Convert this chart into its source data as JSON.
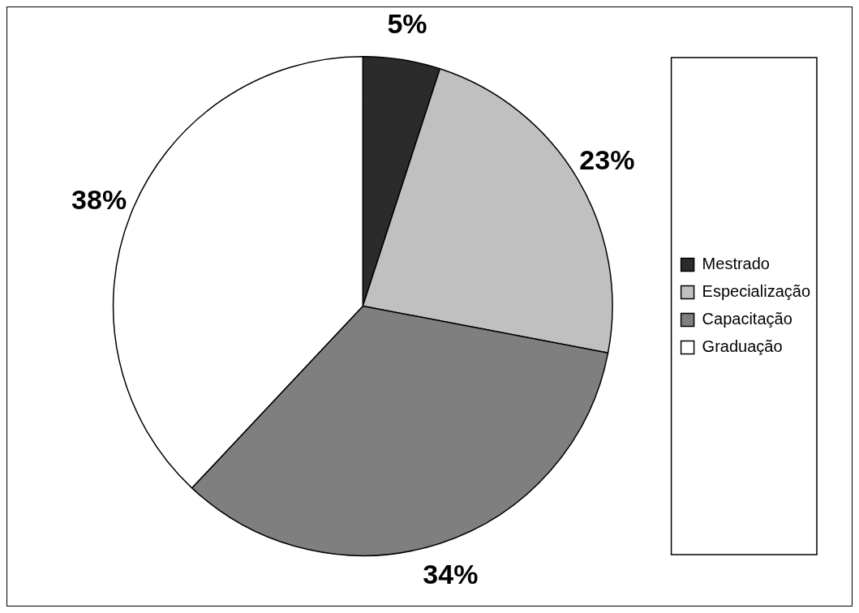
{
  "chart_data": {
    "type": "pie",
    "categories": [
      "Mestrado",
      "Especialização",
      "Capacitação",
      "Graduação"
    ],
    "values": [
      5,
      23,
      34,
      38
    ],
    "value_labels": [
      "5%",
      "23%",
      "34%",
      "38%"
    ],
    "colors": [
      "#2b2b2b",
      "#c0c0c0",
      "#7f7f7f",
      "#ffffff"
    ],
    "legend": "right"
  }
}
